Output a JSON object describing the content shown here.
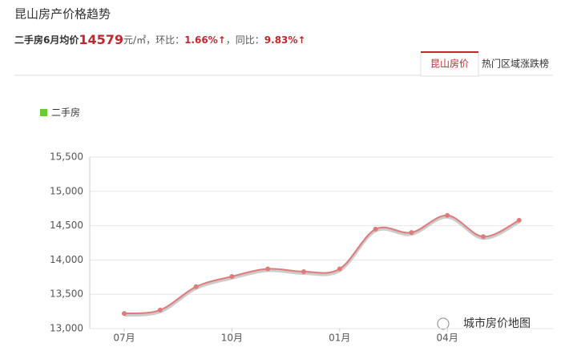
{
  "page_title": "昆山房产价格趋势",
  "summary": {
    "prefix": "二手房6月均价",
    "price": "14579",
    "unit": "元/㎡，环比：",
    "mom": "1.66%↑",
    "sep": "，同比：",
    "yoy": "9.83%↑"
  },
  "tabs": [
    "昆山房价",
    "热门区域涨跌榜"
  ],
  "watermark": "城市房价地图",
  "chart_data": {
    "type": "line",
    "categories": [
      "07月",
      null,
      null,
      "10月",
      null,
      null,
      "01月",
      null,
      null,
      "04月",
      null,
      null
    ],
    "series": [
      {
        "name": "二手房",
        "color": "#e07b7b",
        "legend_color": "#66cc33",
        "values": [
          13220,
          13270,
          13610,
          13760,
          13870,
          13830,
          13870,
          14450,
          14400,
          14650,
          14340,
          14579
        ]
      }
    ],
    "ylim": [
      13000,
      15500
    ],
    "yticks": [
      {
        "value": 13000,
        "label": "13,000"
      },
      {
        "value": 13500,
        "label": "13,500"
      },
      {
        "value": 14000,
        "label": "14,000"
      },
      {
        "value": 14500,
        "label": "14,500"
      },
      {
        "value": 15000,
        "label": "15,000"
      },
      {
        "value": 15500,
        "label": "15,500"
      }
    ],
    "grid": true
  }
}
